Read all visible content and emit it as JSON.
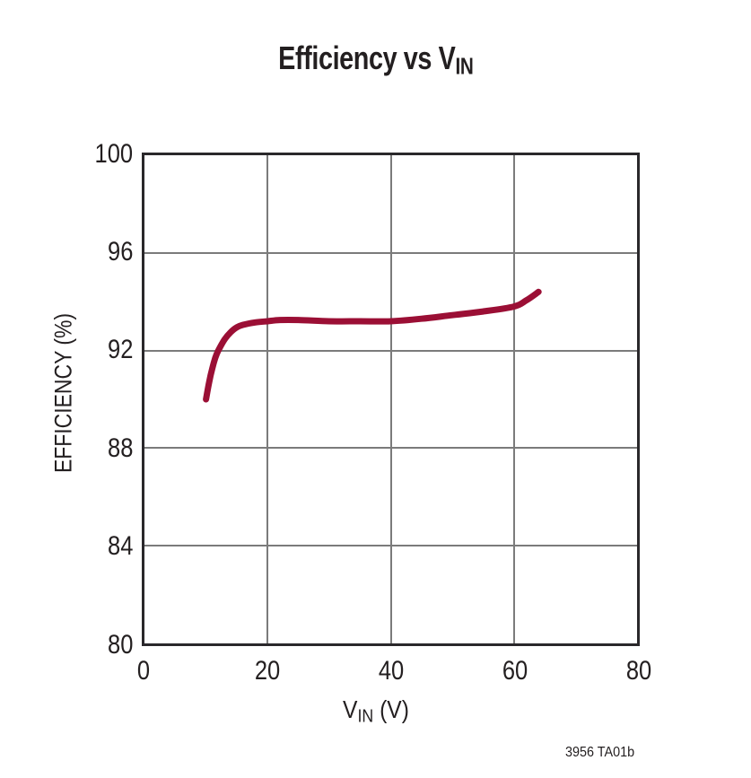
{
  "title": {
    "main": "Efficiency vs V",
    "sub": "IN"
  },
  "xlabel": {
    "main": "V",
    "sub": "IN",
    "rest": " (V)"
  },
  "figure_label": "3956 TA01b",
  "colors": {
    "curve": "#9B0F35",
    "grid": "#7b7b7b",
    "frame": "#2a282b",
    "text": "#231f20"
  },
  "chart_data": {
    "type": "line",
    "title": "Efficiency vs VIN",
    "xlabel": "VIN (V)",
    "ylabel": "EFFICIENCY (%)",
    "xlim": [
      0,
      80
    ],
    "ylim": [
      80,
      100
    ],
    "x_ticks": [
      0,
      20,
      40,
      60,
      80
    ],
    "y_ticks": [
      80,
      84,
      88,
      92,
      96,
      100
    ],
    "grid": true,
    "legend": "none",
    "line_color": "#9B0F35",
    "series": [
      {
        "name": "efficiency",
        "x": [
          10,
          10.5,
          11,
          11.5,
          12,
          13,
          14,
          15,
          16,
          18,
          20,
          22,
          25,
          30,
          35,
          40,
          45,
          50,
          55,
          60,
          62,
          64
        ],
        "y": [
          90.0,
          90.7,
          91.25,
          91.7,
          92.0,
          92.45,
          92.75,
          92.95,
          93.05,
          93.15,
          93.2,
          93.25,
          93.25,
          93.2,
          93.2,
          93.2,
          93.3,
          93.45,
          93.6,
          93.8,
          94.05,
          94.4
        ]
      }
    ]
  }
}
